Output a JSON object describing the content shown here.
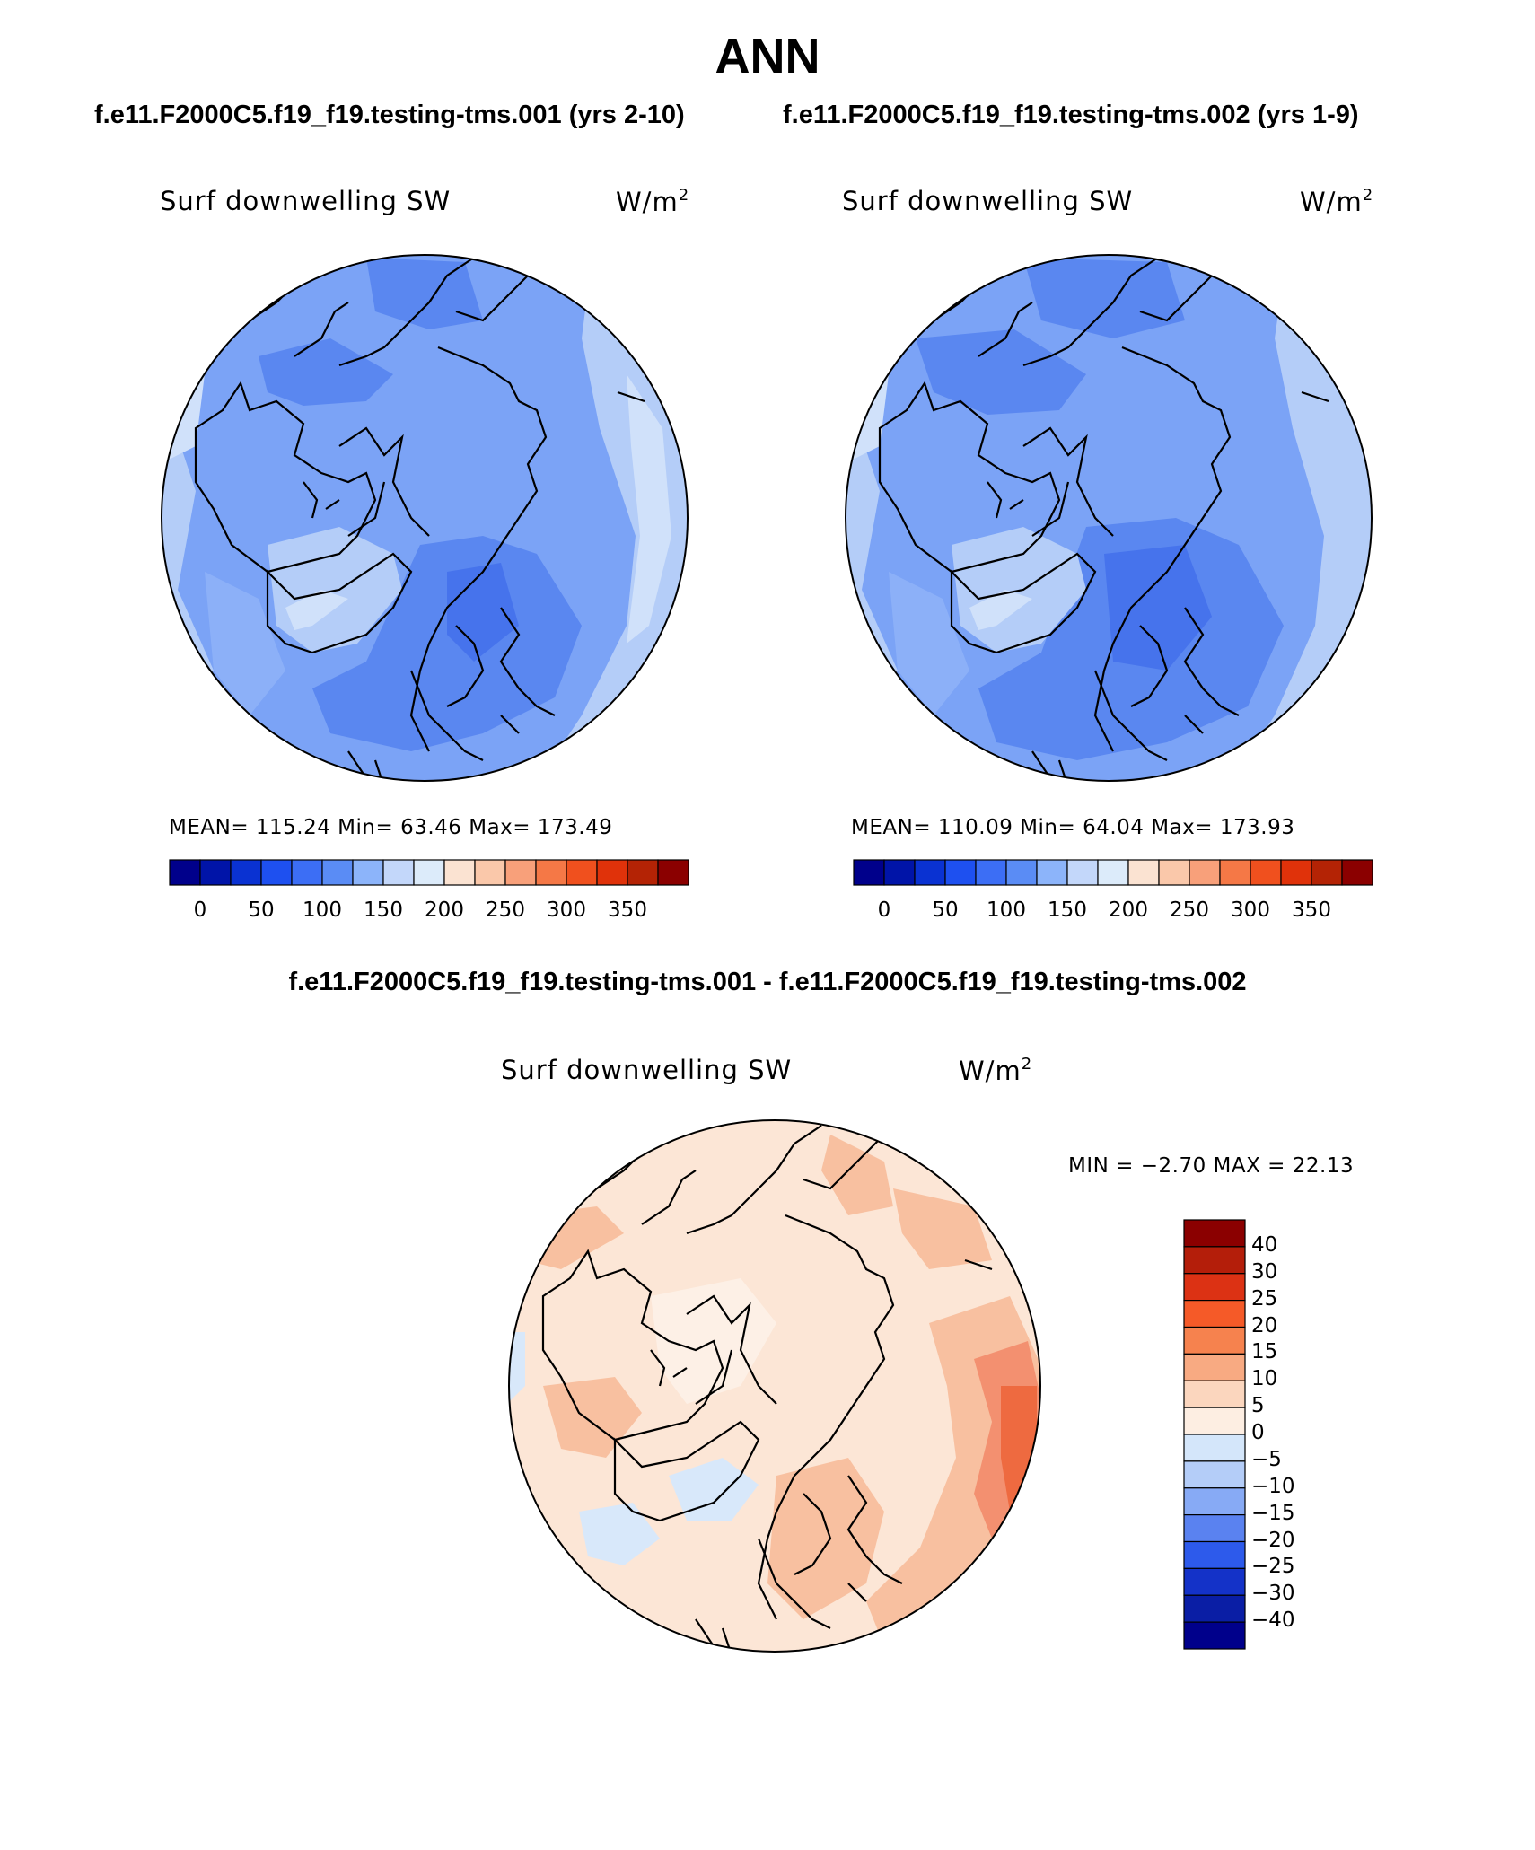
{
  "title": "ANN",
  "case_a_title": "f.e11.F2000C5.f19_f19.testing-tms.001 (yrs 2-10)",
  "case_b_title": "f.e11.F2000C5.f19_f19.testing-tms.002 (yrs 1-9)",
  "diff_title": "f.e11.F2000C5.f19_f19.testing-tms.001 - f.e11.F2000C5.f19_f19.testing-tms.002",
  "panels": {
    "a": {
      "variable": "Surf downwelling SW",
      "units_base": "W/m",
      "units_exp": "2",
      "stats": "MEAN= 115.24   Min=   63.46   Max= 173.49"
    },
    "b": {
      "variable": "Surf downwelling SW",
      "units_base": "W/m",
      "units_exp": "2",
      "stats": "MEAN= 110.09   Min=   64.04   Max= 173.93"
    },
    "diff": {
      "variable": "Surf downwelling SW",
      "units_base": "W/m",
      "units_exp": "2",
      "stats": "MIN =   −2.70  MAX =   22.13"
    }
  },
  "colorbar_main": {
    "labels": [
      "0",
      "50",
      "100",
      "150",
      "200",
      "250",
      "300",
      "350"
    ],
    "colors": [
      "#00008b",
      "#0014a8",
      "#0a32d2",
      "#1e50f0",
      "#3c6ef5",
      "#5a8cf5",
      "#8cb4fa",
      "#c3d7fa",
      "#dcebfa",
      "#fbe3d2",
      "#fac8aa",
      "#f8a07a",
      "#f57846",
      "#f0501e",
      "#e0320a",
      "#b42305",
      "#8b0000"
    ]
  },
  "colorbar_diff": {
    "labels": [
      "40",
      "30",
      "25",
      "20",
      "15",
      "10",
      "5",
      "0",
      "−5",
      "−10",
      "−15",
      "−20",
      "−25",
      "−30",
      "−40"
    ],
    "colors": [
      "#8b0000",
      "#b41e0a",
      "#dc3214",
      "#f55a28",
      "#f6824e",
      "#f8aa82",
      "#fbd6be",
      "#fdeee2",
      "#d4e6fa",
      "#b4cdf8",
      "#87aaf5",
      "#5a82f0",
      "#2d5aeb",
      "#1432c8",
      "#0a1ea5",
      "#00008b"
    ]
  },
  "map_colors": {
    "ocean_pacific": "#b4cdf8",
    "light": "#d0e1fa",
    "mid": "#8cb0f8",
    "base": "#7ba3f6",
    "dark": "#5a87f0",
    "darker": "#4673ec",
    "diff_base": "#fce6d6",
    "diff_light": "#fdf0e6",
    "diff_warm": "#f8c0a0",
    "diff_hot": "#f39070",
    "diff_hotter": "#ee6a40",
    "diff_blue": "#d8e8fa"
  }
}
